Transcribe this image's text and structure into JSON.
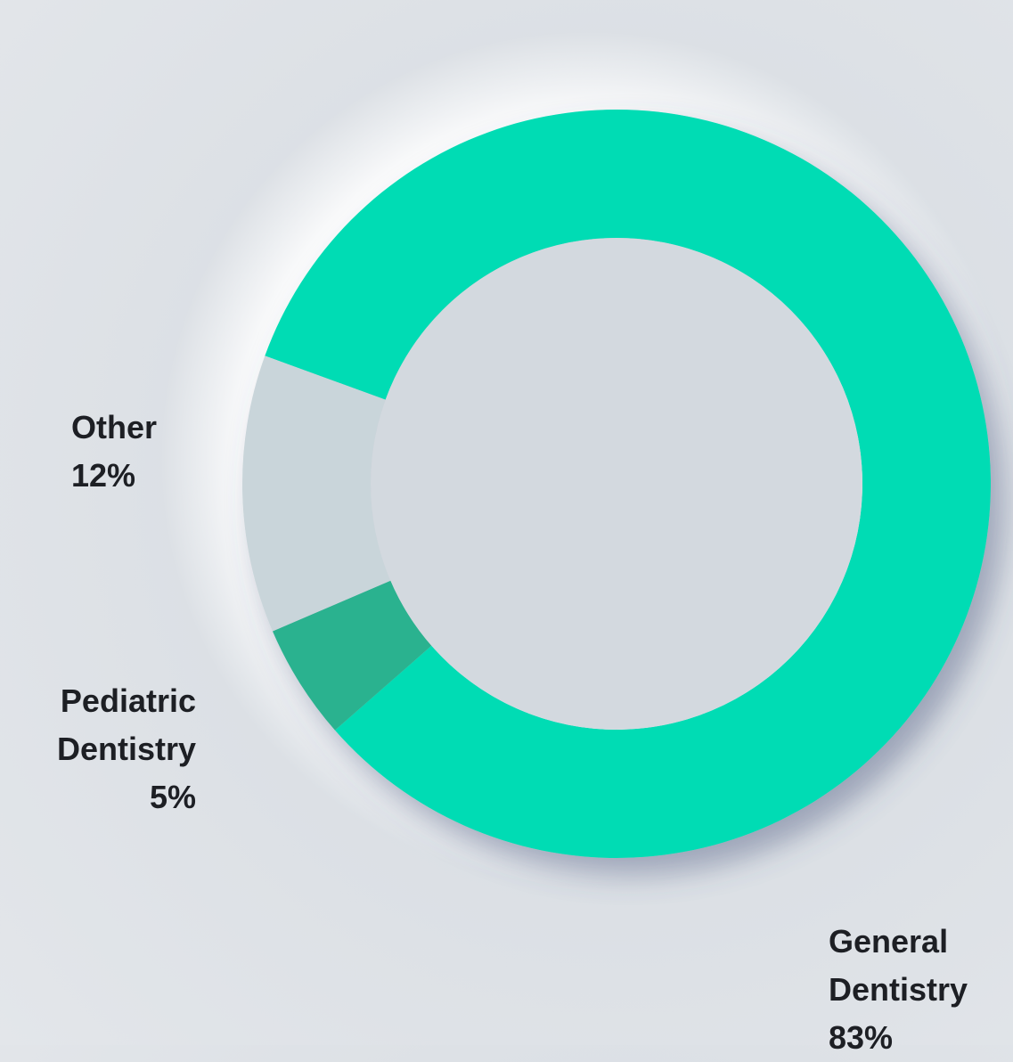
{
  "chart_data": {
    "type": "donut",
    "categories": [
      "General Dentistry",
      "Pediatric Dentistry",
      "Other"
    ],
    "values": [
      83,
      5,
      12
    ],
    "value_labels": [
      "83%",
      "5%",
      "12%"
    ],
    "colors": [
      "#00dcb4",
      "#2cb28f",
      "#c9d5da"
    ]
  }
}
